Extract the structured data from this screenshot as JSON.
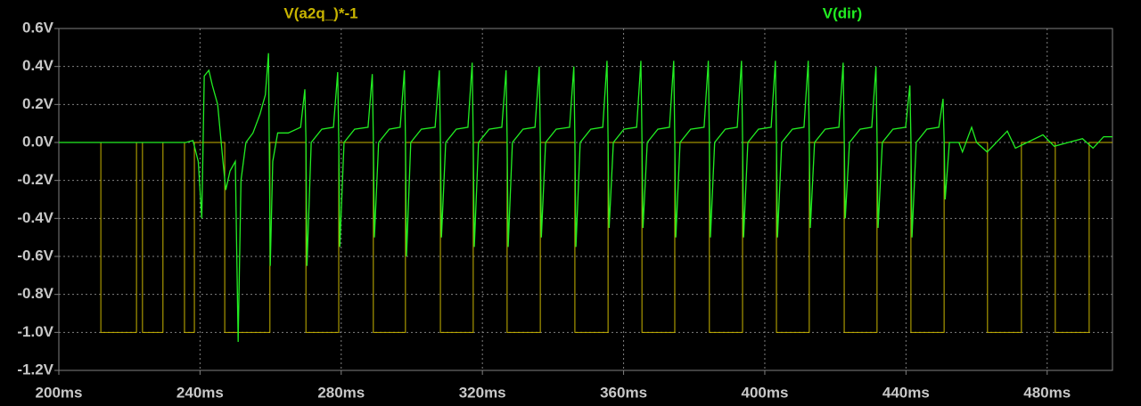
{
  "chart_data": {
    "type": "line",
    "xlim": [
      200,
      498.5
    ],
    "ylim": [
      -1.2,
      0.6
    ],
    "grid": true,
    "xticks": [
      {
        "value": 200,
        "label": "200ms"
      },
      {
        "value": 240,
        "label": "240ms"
      },
      {
        "value": 280,
        "label": "280ms"
      },
      {
        "value": 320,
        "label": "320ms"
      },
      {
        "value": 360,
        "label": "360ms"
      },
      {
        "value": 400,
        "label": "400ms"
      },
      {
        "value": 440,
        "label": "440ms"
      },
      {
        "value": 480,
        "label": "480ms"
      }
    ],
    "yticks": [
      {
        "value": 0.6,
        "label": "0.6V"
      },
      {
        "value": 0.4,
        "label": "0.4V"
      },
      {
        "value": 0.2,
        "label": "0.2V"
      },
      {
        "value": 0.0,
        "label": "0.0V"
      },
      {
        "value": -0.2,
        "label": "-0.2V"
      },
      {
        "value": -0.4,
        "label": "-0.4V"
      },
      {
        "value": -0.6,
        "label": "-0.6V"
      },
      {
        "value": -0.8,
        "label": "-0.8V"
      },
      {
        "value": -1.0,
        "label": "-1.0V"
      },
      {
        "value": -1.2,
        "label": "-1.2V"
      }
    ],
    "series": [
      {
        "name": "V(a2q_)*-1",
        "color": "#c8b400",
        "x": [
          200,
          211.9,
          211.9,
          222.0,
          222.0,
          223.7,
          223.7,
          229.5,
          229.5,
          235.6,
          235.6,
          238.4,
          238.4,
          247.0,
          247.0,
          259.8,
          259.8,
          270.0,
          270.0,
          279.3,
          279.3,
          289.1,
          289.1,
          298.2,
          298.2,
          308.1,
          308.1,
          317.4,
          317.4,
          327.0,
          327.0,
          336.4,
          336.4,
          346.2,
          346.2,
          355.6,
          355.6,
          365.2,
          365.2,
          374.5,
          374.5,
          384.3,
          384.3,
          393.7,
          393.7,
          403.3,
          403.3,
          412.6,
          412.6,
          422.5,
          422.5,
          431.8,
          431.8,
          441.4,
          441.4,
          450.8,
          450.8,
          463.1,
          463.1,
          472.7,
          472.7,
          482.3,
          482.3,
          491.9,
          491.9,
          498.5
        ],
        "values": [
          0,
          0,
          -1,
          -1,
          0,
          0,
          -1,
          -1,
          0,
          0,
          -1,
          -1,
          0,
          0,
          -1,
          -1,
          0,
          0,
          -1,
          -1,
          0,
          0,
          -1,
          -1,
          0,
          0,
          -1,
          -1,
          0,
          0,
          -1,
          -1,
          0,
          0,
          -1,
          -1,
          0,
          0,
          -1,
          -1,
          0,
          0,
          -1,
          -1,
          0,
          0,
          -1,
          -1,
          0,
          0,
          -1,
          -1,
          0,
          0,
          -1,
          -1,
          0,
          0,
          -1,
          -1,
          0,
          0,
          -1,
          -1,
          0,
          0
        ]
      },
      {
        "name": "V(dir)",
        "color": "#22ee22",
        "x": [
          200,
          236,
          238,
          239.5,
          240.5,
          241.2,
          242.5,
          243.5,
          245,
          246.5,
          247.3,
          248.5,
          250,
          250.8,
          251.6,
          253,
          255,
          257,
          258.5,
          259.4,
          259.9,
          260.6,
          262,
          265,
          268.5,
          269.7,
          270,
          270.3,
          271.5,
          274.5,
          277.8,
          279,
          279.3,
          279.6,
          280.8,
          283.8,
          287.6,
          288.8,
          289.1,
          289.4,
          290.6,
          293.6,
          296.7,
          297.9,
          298.2,
          298.5,
          299.7,
          302.7,
          306.6,
          307.8,
          308.1,
          308.4,
          309.6,
          312.6,
          315.9,
          317.1,
          317.4,
          317.7,
          318.9,
          321.9,
          325.5,
          326.7,
          327,
          327.3,
          328.5,
          331.5,
          334.9,
          336.1,
          336.4,
          336.7,
          337.9,
          340.9,
          344.7,
          345.9,
          346.2,
          346.5,
          347.7,
          350.7,
          354.1,
          355.3,
          355.6,
          355.9,
          357.1,
          360.1,
          363.7,
          364.9,
          365.2,
          365.5,
          366.7,
          369.7,
          373,
          374.2,
          374.5,
          374.8,
          376,
          379,
          382.8,
          384,
          384.3,
          384.6,
          385.8,
          388.8,
          392.2,
          393.4,
          393.7,
          394,
          395.2,
          398.2,
          401.8,
          403,
          403.3,
          403.6,
          404.8,
          407.8,
          411.1,
          412.3,
          412.6,
          412.9,
          414.1,
          417.1,
          421,
          422.2,
          422.5,
          422.8,
          424,
          427,
          430.3,
          431.5,
          431.8,
          432.1,
          433.3,
          436.3,
          439.9,
          441.1,
          441.4,
          441.7,
          442.9,
          445.9,
          449.3,
          450.5,
          450.8,
          451.1,
          452.3,
          455,
          456,
          458.6,
          460,
          463,
          468.7,
          471,
          478.8,
          482,
          490,
          493,
          496,
          498.5
        ],
        "values": [
          0,
          0,
          0.01,
          -0.1,
          -0.4,
          0.35,
          0.38,
          0.3,
          0.2,
          -0.1,
          -0.25,
          -0.15,
          -0.1,
          -1.05,
          -0.2,
          0,
          0.05,
          0.15,
          0.25,
          0.47,
          -0.65,
          -0.1,
          0.05,
          0.05,
          0.08,
          0.28,
          0.02,
          -0.65,
          0,
          0.07,
          0.08,
          0.37,
          0.02,
          -0.55,
          0,
          0.07,
          0.08,
          0.36,
          0.02,
          -0.5,
          0,
          0.07,
          0.08,
          0.38,
          0.02,
          -0.6,
          0,
          0.07,
          0.08,
          0.38,
          0.02,
          -0.5,
          0,
          0.07,
          0.08,
          0.42,
          0.02,
          -0.55,
          0,
          0.07,
          0.08,
          0.38,
          0.02,
          -0.55,
          0,
          0.07,
          0.08,
          0.4,
          0.02,
          -0.5,
          0,
          0.07,
          0.08,
          0.4,
          0.02,
          -0.55,
          0,
          0.07,
          0.08,
          0.43,
          0.02,
          -0.45,
          0,
          0.07,
          0.08,
          0.43,
          0.02,
          -0.45,
          0,
          0.07,
          0.08,
          0.43,
          0.02,
          -0.5,
          0,
          0.07,
          0.08,
          0.43,
          0.02,
          -0.5,
          0,
          0.07,
          0.08,
          0.43,
          0.02,
          -0.5,
          0,
          0.07,
          0.08,
          0.43,
          0.02,
          -0.5,
          0,
          0.07,
          0.08,
          0.43,
          0.02,
          -0.45,
          0,
          0.07,
          0.08,
          0.42,
          0.02,
          -0.4,
          0,
          0.07,
          0.08,
          0.4,
          0.02,
          -0.45,
          0,
          0.07,
          0.08,
          0.3,
          0.02,
          -0.5,
          0,
          0.07,
          0.08,
          0.23,
          0.02,
          -0.3,
          0,
          0,
          -0.05,
          0.08,
          0,
          -0.05,
          0.06,
          -0.03,
          0.04,
          -0.02,
          0.02,
          -0.03,
          0.03,
          0.03
        ]
      }
    ]
  }
}
